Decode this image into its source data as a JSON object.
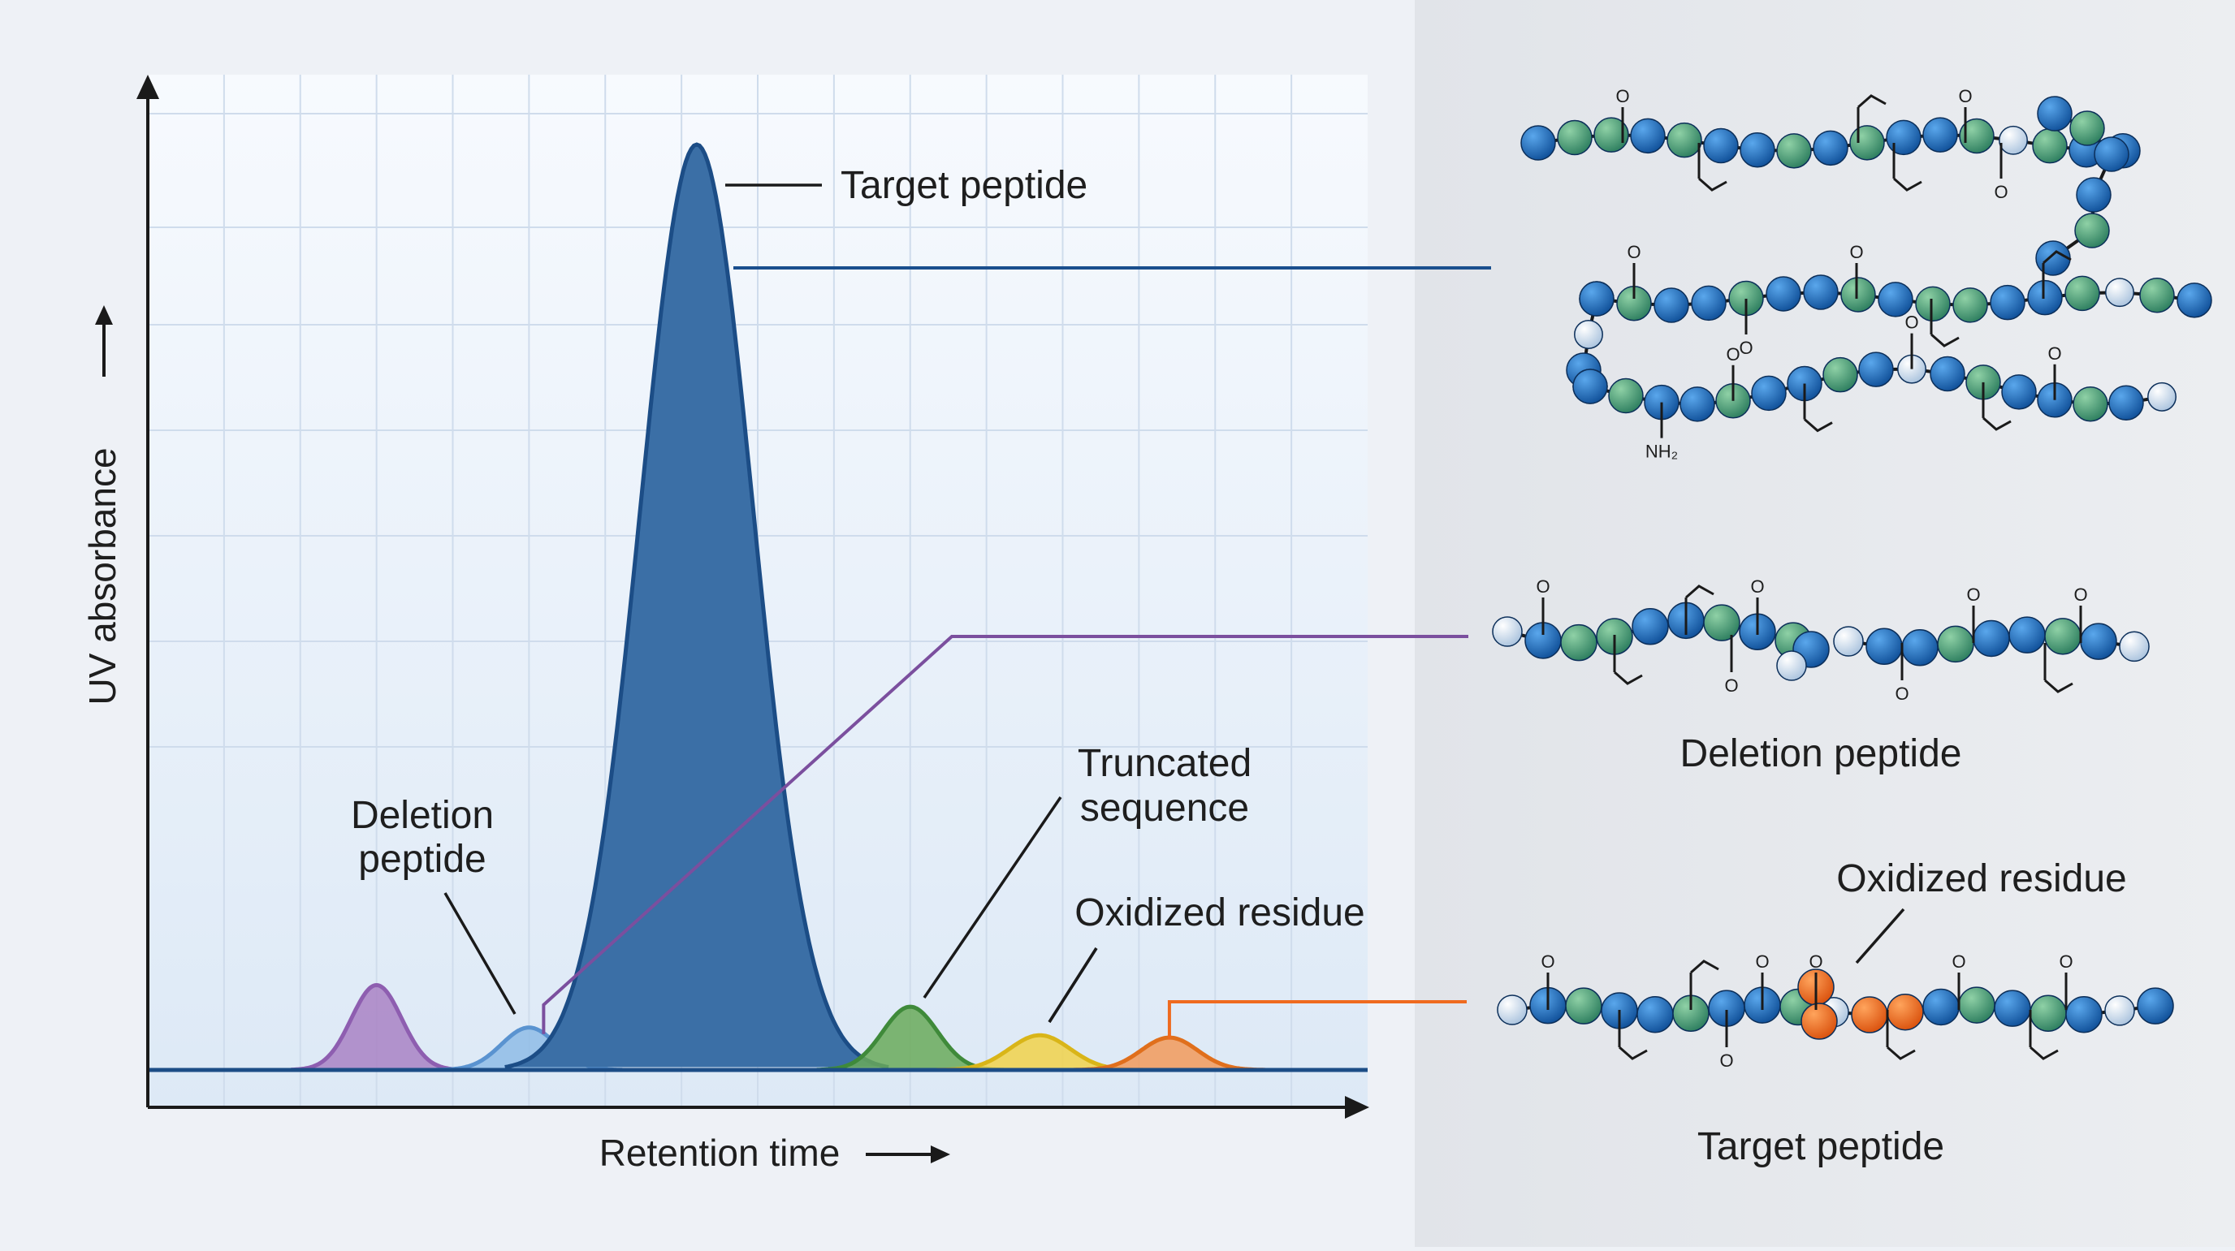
{
  "chart_data": {
    "type": "area",
    "subtype": "chromatogram",
    "title": "",
    "xlabel": "Retention time",
    "ylabel": "UV absorbance",
    "xlim": [
      0,
      16
    ],
    "ylim": [
      0,
      12
    ],
    "grid": true,
    "legend": "none",
    "x_ticks_labeled": false,
    "y_ticks_labeled": false,
    "series": [
      {
        "key": "deletion-minor",
        "center": 3.0,
        "height": 1.1,
        "width": 0.33,
        "color": "#8e5eb0",
        "fill": "#a982c4"
      },
      {
        "key": "deletion",
        "center": 5.0,
        "height": 0.55,
        "width": 0.36,
        "color": "#5a93d0",
        "fill": "#8fbce6"
      },
      {
        "key": "target",
        "center": 7.2,
        "height": 12.0,
        "width": 0.74,
        "color": "#1c4d86",
        "fill": "#3b6fa6"
      },
      {
        "key": "truncated",
        "center": 10.0,
        "height": 0.82,
        "width": 0.36,
        "color": "#3f8a3a",
        "fill": "#6aaa5a"
      },
      {
        "key": "oxidized-minor",
        "center": 11.7,
        "height": 0.45,
        "width": 0.4,
        "color": "#d9b518",
        "fill": "#f1d24a"
      },
      {
        "key": "oxidized",
        "center": 13.4,
        "height": 0.42,
        "width": 0.37,
        "color": "#e06f1c",
        "fill": "#f29a5a"
      }
    ],
    "annotations": [
      {
        "key": "target",
        "text": "Target peptide"
      },
      {
        "key": "deletion",
        "text": "Deletion\npeptide"
      },
      {
        "key": "truncated",
        "text": "Truncated\nsequence"
      },
      {
        "key": "oxidized",
        "text": "Oxidized residue"
      }
    ]
  },
  "structures": {
    "target_top_label": "",
    "deletion_label": "Deletion peptide",
    "oxidized_label": "Oxidized residue",
    "target_label": "Target peptide",
    "atom_o": "O",
    "atom_nh2": "NH₂",
    "colors": {
      "blue": "#1f6bb8",
      "green": "#4f9d73",
      "white": "#e4eef8",
      "orange": "#ef6a1f",
      "purple": "#7b4f9e",
      "navy": "#1a4f8e"
    }
  },
  "guide_arrows": {
    "y_arrow": "→",
    "x_arrow": "→"
  }
}
